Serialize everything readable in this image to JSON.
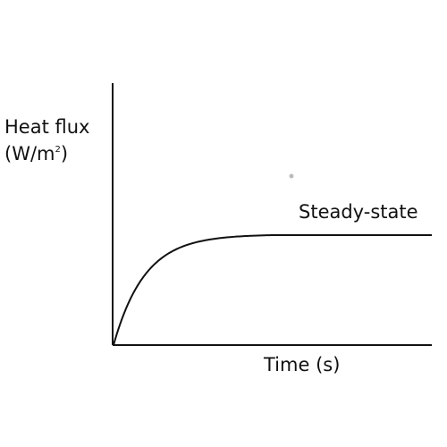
{
  "chart_data": {
    "type": "line",
    "title": "",
    "ylabel_line1": "Heat flux",
    "ylabel_unit_prefix": "(W/m",
    "ylabel_unit_sup": "2",
    "ylabel_unit_suffix": ")",
    "xlabel": "Time (s)",
    "annotation": "Steady-state",
    "grid": false,
    "axis_color": "#111111",
    "curve_color": "#111111",
    "series": [
      {
        "shape": "exponential-rise-to-plateau",
        "x": [
          0,
          0.05,
          0.1,
          0.15,
          0.2,
          0.25,
          0.3,
          0.35,
          0.4,
          0.45,
          0.5,
          0.6,
          0.7,
          0.8,
          0.9,
          1.0
        ],
        "y": [
          0,
          0.39,
          0.63,
          0.78,
          0.86,
          0.92,
          0.95,
          0.97,
          0.98,
          0.99,
          1.0,
          1.0,
          1.0,
          1.0,
          1.0,
          1.0
        ]
      }
    ]
  }
}
